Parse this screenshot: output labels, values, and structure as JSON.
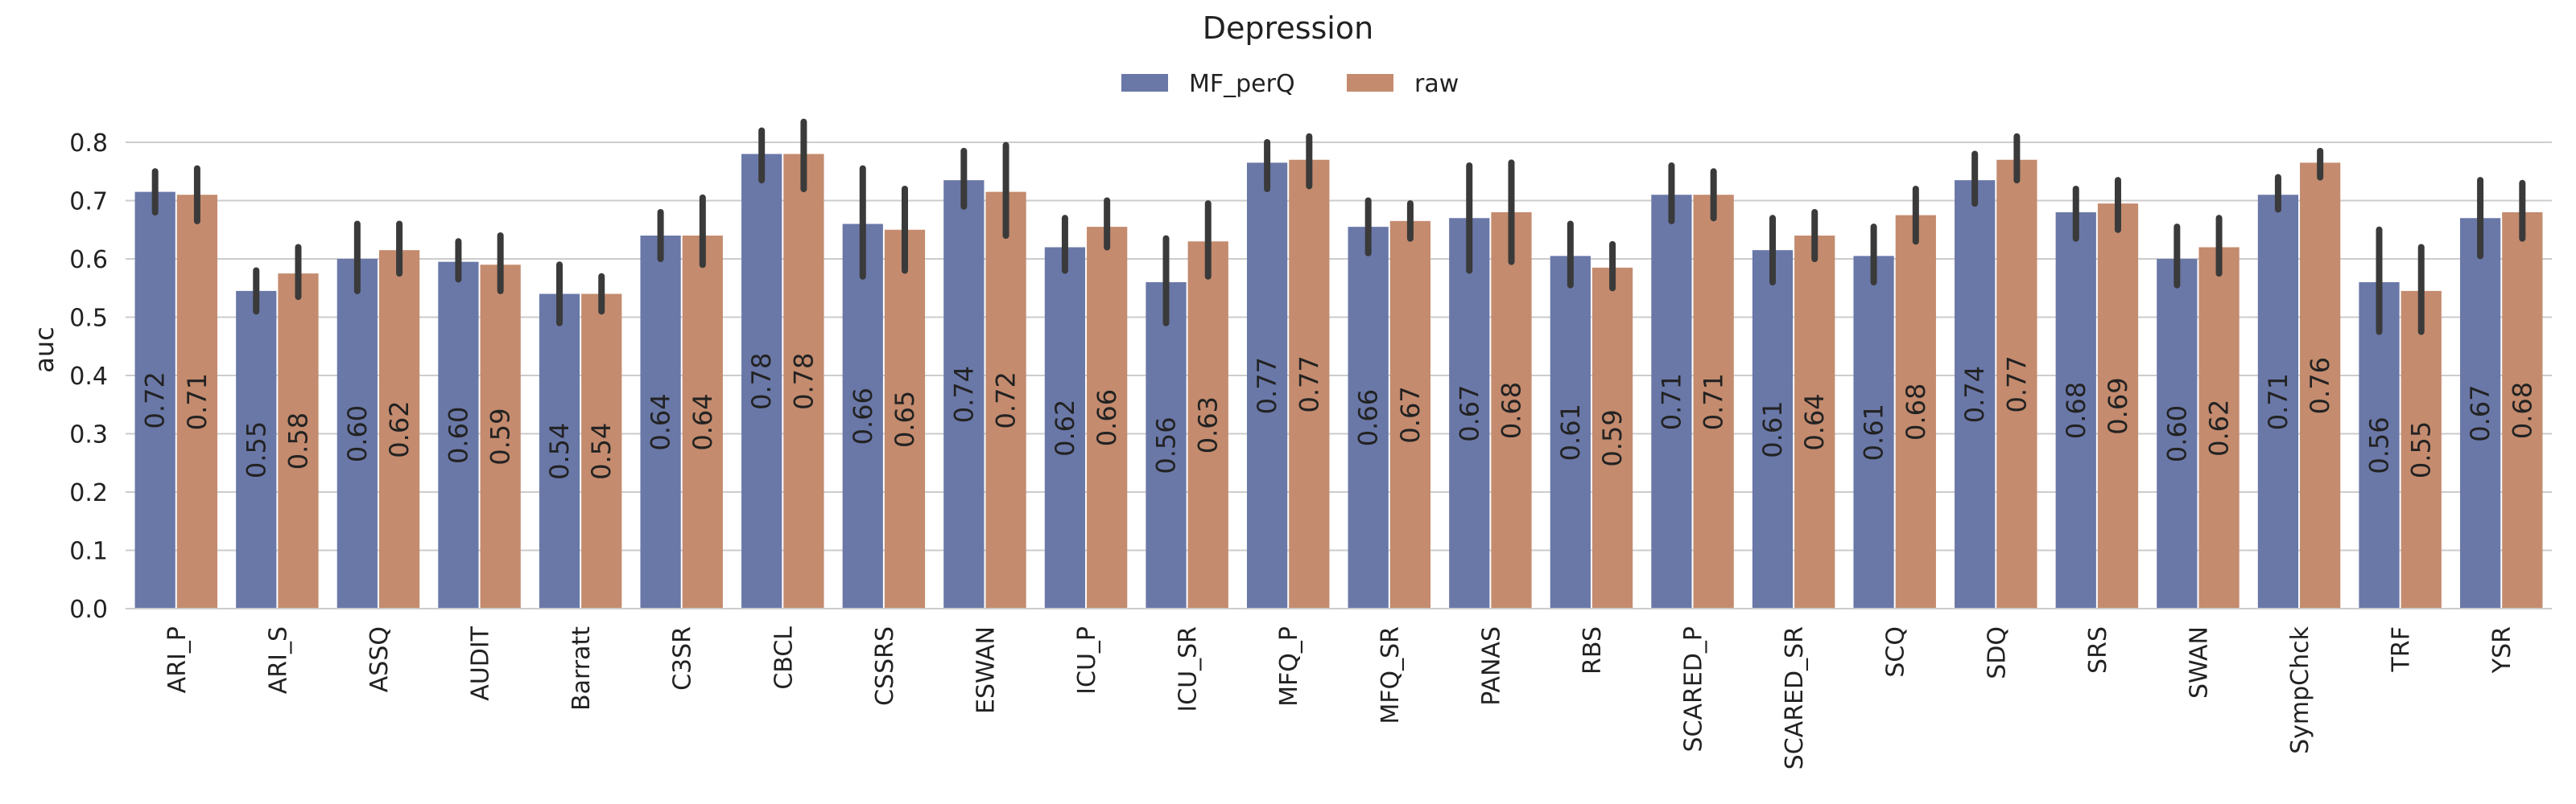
{
  "chart_data": {
    "type": "bar",
    "title": "Depression",
    "xlabel": "",
    "ylabel": "auc",
    "ylim": [
      0,
      0.84
    ],
    "yticks": [
      "0.0",
      "0.1",
      "0.2",
      "0.3",
      "0.4",
      "0.5",
      "0.6",
      "0.7",
      "0.8"
    ],
    "grid": true,
    "legend_position": "top-center",
    "categories": [
      "ARI_P",
      "ARI_S",
      "ASSQ",
      "AUDIT",
      "Barratt",
      "C3SR",
      "CBCL",
      "CSSRS",
      "ESWAN",
      "ICU_P",
      "ICU_SR",
      "MFQ_P",
      "MFQ_SR",
      "PANAS",
      "RBS",
      "SCARED_P",
      "SCARED_SR",
      "SCQ",
      "SDQ",
      "SRS",
      "SWAN",
      "SympChck",
      "TRF",
      "YSR"
    ],
    "series": [
      {
        "name": "MF_perQ",
        "color": "#6a78a8",
        "values": [
          0.715,
          0.545,
          0.6,
          0.595,
          0.54,
          0.64,
          0.78,
          0.66,
          0.735,
          0.62,
          0.56,
          0.765,
          0.655,
          0.67,
          0.605,
          0.71,
          0.615,
          0.605,
          0.735,
          0.68,
          0.6,
          0.71,
          0.56,
          0.67
        ],
        "labels": [
          "0.72",
          "0.55",
          "0.60",
          "0.60",
          "0.54",
          "0.64",
          "0.78",
          "0.66",
          "0.74",
          "0.62",
          "0.56",
          "0.77",
          "0.66",
          "0.67",
          "0.61",
          "0.71",
          "0.61",
          "0.61",
          "0.74",
          "0.68",
          "0.60",
          "0.71",
          "0.56",
          "0.67"
        ],
        "ci": [
          [
            0.68,
            0.75
          ],
          [
            0.51,
            0.58
          ],
          [
            0.545,
            0.66
          ],
          [
            0.565,
            0.63
          ],
          [
            0.49,
            0.59
          ],
          [
            0.6,
            0.68
          ],
          [
            0.735,
            0.82
          ],
          [
            0.57,
            0.755
          ],
          [
            0.69,
            0.785
          ],
          [
            0.58,
            0.67
          ],
          [
            0.49,
            0.635
          ],
          [
            0.72,
            0.8
          ],
          [
            0.61,
            0.7
          ],
          [
            0.58,
            0.76
          ],
          [
            0.555,
            0.66
          ],
          [
            0.665,
            0.76
          ],
          [
            0.56,
            0.67
          ],
          [
            0.56,
            0.655
          ],
          [
            0.695,
            0.78
          ],
          [
            0.635,
            0.72
          ],
          [
            0.555,
            0.655
          ],
          [
            0.685,
            0.74
          ],
          [
            0.475,
            0.65
          ],
          [
            0.605,
            0.735
          ]
        ]
      },
      {
        "name": "raw",
        "color": "#c48b6e",
        "values": [
          0.71,
          0.575,
          0.615,
          0.59,
          0.54,
          0.64,
          0.78,
          0.65,
          0.715,
          0.655,
          0.63,
          0.77,
          0.665,
          0.68,
          0.585,
          0.71,
          0.64,
          0.675,
          0.77,
          0.695,
          0.62,
          0.765,
          0.545,
          0.68
        ],
        "labels": [
          "0.71",
          "0.58",
          "0.62",
          "0.59",
          "0.54",
          "0.64",
          "0.78",
          "0.65",
          "0.72",
          "0.66",
          "0.63",
          "0.77",
          "0.67",
          "0.68",
          "0.59",
          "0.71",
          "0.64",
          "0.68",
          "0.77",
          "0.69",
          "0.62",
          "0.76",
          "0.55",
          "0.68"
        ],
        "ci": [
          [
            0.665,
            0.755
          ],
          [
            0.535,
            0.62
          ],
          [
            0.575,
            0.66
          ],
          [
            0.545,
            0.64
          ],
          [
            0.51,
            0.57
          ],
          [
            0.59,
            0.705
          ],
          [
            0.72,
            0.835
          ],
          [
            0.58,
            0.72
          ],
          [
            0.64,
            0.795
          ],
          [
            0.62,
            0.7
          ],
          [
            0.57,
            0.695
          ],
          [
            0.725,
            0.81
          ],
          [
            0.635,
            0.695
          ],
          [
            0.595,
            0.765
          ],
          [
            0.55,
            0.625
          ],
          [
            0.67,
            0.75
          ],
          [
            0.6,
            0.68
          ],
          [
            0.63,
            0.72
          ],
          [
            0.735,
            0.81
          ],
          [
            0.65,
            0.735
          ],
          [
            0.575,
            0.67
          ],
          [
            0.74,
            0.785
          ],
          [
            0.475,
            0.62
          ],
          [
            0.635,
            0.73
          ]
        ]
      }
    ]
  }
}
